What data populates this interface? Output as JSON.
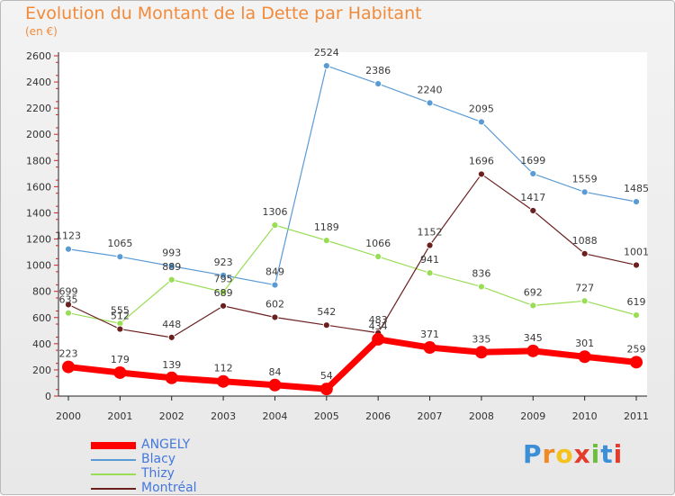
{
  "header": {
    "title": "Evolution du Montant de la Dette par Habitant",
    "unit": "(en €)"
  },
  "logo": {
    "text": "Proxiti",
    "colors": [
      "#3b8fd6",
      "#f08a24",
      "#f3c21c",
      "#e53b2c",
      "#6bbf3a",
      "#3b8fd6",
      "#e53b2c"
    ]
  },
  "chart_data": {
    "type": "line",
    "x": [
      "2000",
      "2001",
      "2002",
      "2003",
      "2004",
      "2005",
      "2006",
      "2007",
      "2008",
      "2009",
      "2010",
      "2011"
    ],
    "ylim": [
      0,
      2600
    ],
    "yticks": [
      0,
      200,
      400,
      600,
      800,
      1000,
      1200,
      1400,
      1600,
      1800,
      2000,
      2200,
      2400,
      2600
    ],
    "grid": false,
    "legend_position": "bottom-left",
    "series": [
      {
        "name": "ANGELY",
        "color": "#ff0000",
        "values": [
          223,
          179,
          139,
          112,
          84,
          54,
          434,
          371,
          335,
          345,
          301,
          259
        ]
      },
      {
        "name": "Blacy",
        "color": "#5b9bd5",
        "values": [
          1123,
          1065,
          993,
          923,
          849,
          2524,
          2386,
          2240,
          2095,
          1699,
          1559,
          1485
        ]
      },
      {
        "name": "Thizy",
        "color": "#99dd55",
        "values": [
          635,
          555,
          889,
          795,
          1306,
          1189,
          1066,
          941,
          836,
          692,
          727,
          619
        ]
      },
      {
        "name": "Montréal",
        "color": "#6b1f1f",
        "values": [
          699,
          512,
          448,
          689,
          602,
          542,
          483,
          1152,
          1696,
          1417,
          1088,
          1001
        ]
      }
    ]
  }
}
